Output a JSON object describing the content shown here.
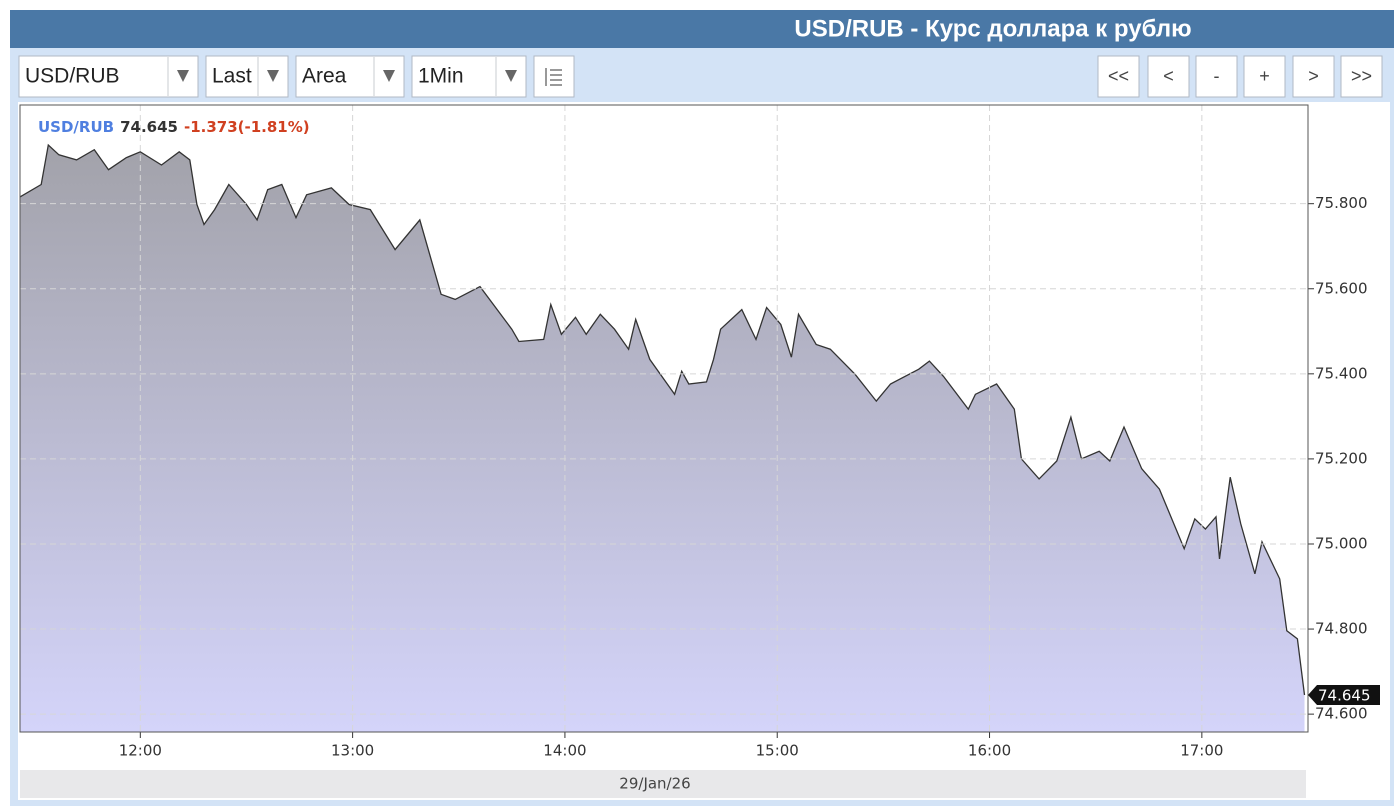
{
  "header": {
    "title": "USD/RUB - Курс доллара к рублю"
  },
  "toolbar": {
    "selects": [
      "USD/RUB",
      "Last",
      "Area",
      "1Min"
    ],
    "buttons": [
      "<<",
      "<",
      "-",
      "+",
      ">",
      ">>"
    ]
  },
  "chart_data": {
    "type": "area",
    "legend": {
      "symbol": "USD/RUB",
      "last": "74.645",
      "change": "-1.373(-1.81%)"
    },
    "x_label": "29/Jan/26",
    "xlim": [
      686,
      1050
    ],
    "xticks": [
      {
        "value": 720,
        "label": "12:00"
      },
      {
        "value": 780,
        "label": "13:00"
      },
      {
        "value": 840,
        "label": "14:00"
      },
      {
        "value": 900,
        "label": "15:00"
      },
      {
        "value": 960,
        "label": "16:00"
      },
      {
        "value": 1020,
        "label": "17:00"
      }
    ],
    "ylim": [
      74.558,
      76.032
    ],
    "yticks": [
      {
        "value": 74.6,
        "label": "74.600"
      },
      {
        "value": 74.8,
        "label": "74.800"
      },
      {
        "value": 75.0,
        "label": "75.000"
      },
      {
        "value": 75.2,
        "label": "75.200"
      },
      {
        "value": 75.4,
        "label": "75.400"
      },
      {
        "value": 75.6,
        "label": "75.600"
      },
      {
        "value": 75.8,
        "label": "75.800"
      }
    ],
    "grid": true,
    "series": [
      {
        "name": "USD/RUB",
        "color": "#333333",
        "fill": [
          "#a2a2aa",
          "#d4d4fa"
        ],
        "x": [
          686,
          692,
          694,
          697,
          702,
          707,
          711,
          716,
          720,
          726,
          731,
          734,
          736,
          738,
          741,
          745,
          750,
          753,
          756,
          760,
          764,
          767,
          774,
          779,
          785,
          792,
          799,
          805,
          809,
          816,
          825,
          827,
          834,
          836,
          839,
          843,
          846,
          850,
          854,
          858,
          860,
          864,
          871,
          873,
          875,
          880,
          882,
          884,
          890,
          894,
          897,
          901,
          904,
          906,
          911,
          915,
          922,
          928,
          932,
          940,
          943,
          947,
          954,
          956,
          962,
          967,
          969,
          974,
          979,
          983,
          986,
          991,
          994,
          998,
          1003,
          1008,
          1015,
          1018,
          1021,
          1024,
          1025,
          1028,
          1031,
          1035,
          1037,
          1042,
          1044,
          1047,
          1049
        ],
        "values": [
          75.816,
          75.845,
          75.938,
          75.915,
          75.903,
          75.927,
          75.88,
          75.908,
          75.922,
          75.891,
          75.922,
          75.903,
          75.798,
          75.751,
          75.786,
          75.845,
          75.798,
          75.762,
          75.833,
          75.845,
          75.767,
          75.821,
          75.837,
          75.798,
          75.786,
          75.692,
          75.762,
          75.587,
          75.575,
          75.605,
          75.505,
          75.476,
          75.481,
          75.563,
          75.493,
          75.533,
          75.493,
          75.54,
          75.505,
          75.458,
          75.528,
          75.434,
          75.352,
          75.406,
          75.376,
          75.381,
          75.434,
          75.505,
          75.551,
          75.481,
          75.556,
          75.516,
          75.439,
          75.54,
          75.469,
          75.458,
          75.399,
          75.336,
          75.376,
          75.411,
          75.43,
          75.394,
          75.317,
          75.352,
          75.376,
          75.317,
          75.2,
          75.153,
          75.195,
          75.298,
          75.2,
          75.218,
          75.195,
          75.275,
          75.177,
          75.129,
          74.989,
          75.059,
          75.035,
          75.064,
          74.965,
          75.157,
          75.047,
          74.93,
          75.005,
          74.918,
          74.796,
          74.777,
          74.645
        ]
      }
    ]
  }
}
